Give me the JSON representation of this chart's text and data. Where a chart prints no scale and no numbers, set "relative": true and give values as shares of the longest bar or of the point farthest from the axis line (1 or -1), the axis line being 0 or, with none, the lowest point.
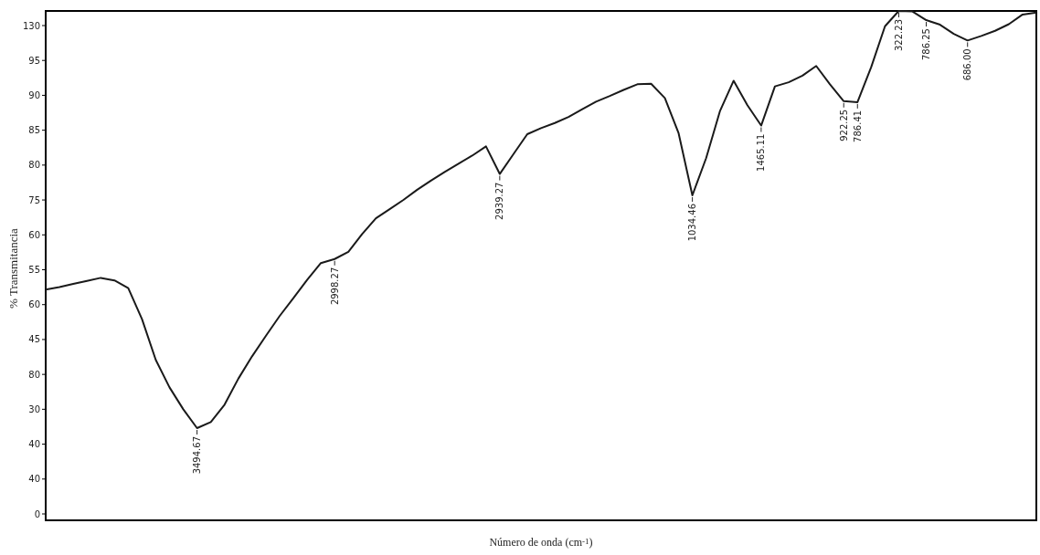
{
  "chart_data": {
    "type": "line",
    "xlabel": "Número de onda (cm$^{-1}$)",
    "ylabel": "% Transmitancia",
    "color": "#1a1a1a",
    "relative": true,
    "categories": [
      null,
      null,
      null,
      null,
      null,
      null,
      null,
      null,
      null,
      null,
      null,
      null,
      null,
      null,
      null,
      null,
      null,
      null,
      null,
      null,
      null,
      null,
      null,
      null,
      null,
      null,
      null,
      null,
      null,
      null,
      null,
      null,
      null,
      null,
      null,
      null,
      null,
      null,
      null,
      null,
      null,
      null,
      null,
      null,
      null,
      null,
      null,
      null,
      null,
      null,
      null,
      null,
      null,
      null,
      null,
      null,
      null,
      null,
      null,
      null,
      null,
      null,
      null,
      null,
      null,
      null,
      null,
      null,
      null,
      null,
      null,
      null,
      null
    ],
    "values": [
      0.453,
      0.458,
      0.464,
      0.47,
      0.476,
      0.471,
      0.456,
      0.395,
      0.315,
      0.261,
      0.218,
      0.181,
      0.193,
      0.227,
      0.278,
      0.322,
      0.362,
      0.401,
      0.436,
      0.472,
      0.505,
      0.513,
      0.527,
      0.562,
      0.593,
      0.611,
      0.629,
      0.649,
      0.667,
      0.684,
      0.7,
      0.716,
      0.734,
      0.68,
      0.719,
      0.758,
      0.77,
      0.78,
      0.792,
      0.807,
      0.822,
      0.833,
      0.845,
      0.856,
      0.857,
      0.829,
      0.76,
      0.638,
      0.711,
      0.803,
      0.863,
      0.815,
      0.775,
      0.852,
      0.86,
      0.873,
      0.892,
      0.856,
      0.823,
      0.821,
      0.89,
      0.97,
      1,
      0.999,
      0.982,
      0.973,
      0.955,
      0.942,
      0.951,
      0.961,
      0.974,
      0.993,
      0.997
    ],
    "annotations": [
      "130",
      "95",
      "90",
      "85",
      "80",
      "75",
      "60",
      "55",
      "60",
      "45",
      "80",
      "30",
      "40",
      "40",
      "0",
      {
        "text": "3494.67",
        "y": 0.181
      },
      {
        "text": "2998.27",
        "y": 0.513
      },
      {
        "text": "2939.27",
        "y": 0.68
      },
      {
        "text": "1034.46",
        "y": 0.638
      },
      {
        "text": "1465.11",
        "y": 0.775
      },
      {
        "text": "922.25",
        "y": 0.823
      },
      {
        "text": "786.41",
        "y": 0.821
      },
      {
        "text": "322.23",
        "y": 1
      },
      {
        "text": "786.25",
        "y": 0.982
      },
      {
        "text": "686.00",
        "y": 0.942
      }
    ]
  }
}
